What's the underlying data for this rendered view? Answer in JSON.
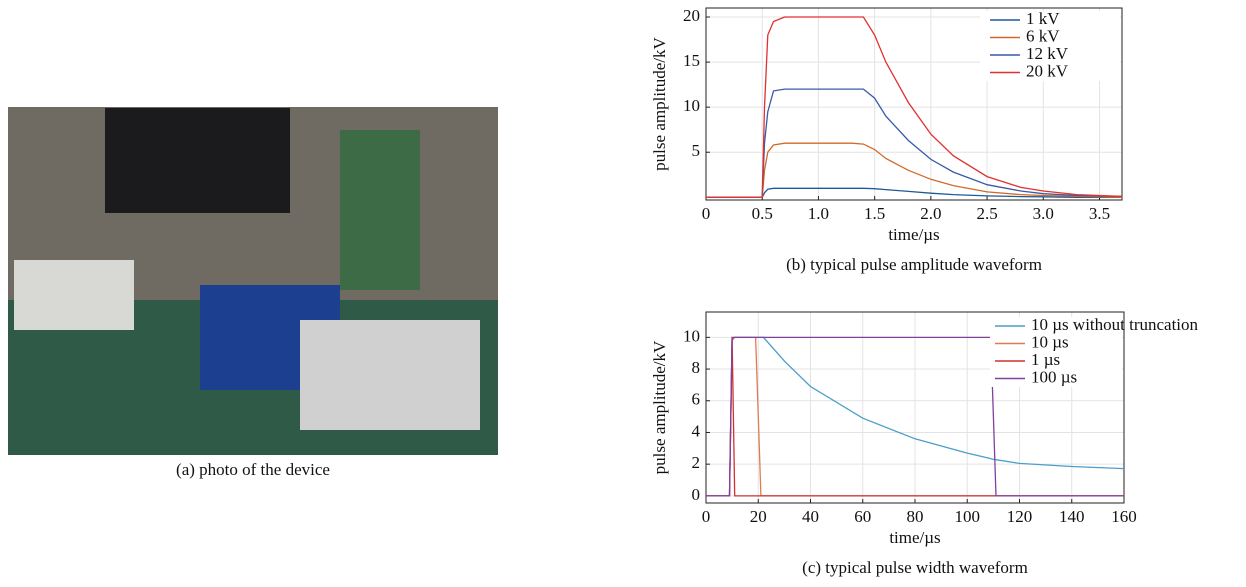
{
  "photo_caption": "(a) photo of the device",
  "chart_data": [
    {
      "type": "line",
      "caption": "(b) typical pulse amplitude waveform",
      "xlabel": "time/µs",
      "ylabel": "pulse amplitude/kV",
      "xlim": [
        0,
        3.7
      ],
      "ylim": [
        -0.3,
        21
      ],
      "xticks": [
        0,
        0.5,
        {
          "value": 1,
          "label": "1.0"
        },
        1.5,
        {
          "value": 2,
          "label": "2.0"
        },
        2.5,
        {
          "value": 3,
          "label": "3.0"
        },
        3.5
      ],
      "yticks": [
        5,
        10,
        15,
        20
      ],
      "grid": true,
      "legend": "upper right",
      "x": [
        0,
        0.5,
        0.52,
        0.55,
        0.6,
        0.7,
        1.0,
        1.3,
        1.4,
        1.5,
        1.6,
        1.8,
        2.0,
        2.2,
        2.5,
        2.8,
        3.0,
        3.3,
        3.7
      ],
      "series": [
        {
          "name": "1 kV",
          "color": "#1f5a9a",
          "values": [
            0,
            0,
            0.5,
            0.9,
            1,
            1,
            1,
            1,
            1,
            0.95,
            0.85,
            0.65,
            0.45,
            0.3,
            0.15,
            0.08,
            0.05,
            0,
            0
          ]
        },
        {
          "name": "6 kV",
          "color": "#d06a2a",
          "values": [
            0,
            0,
            3,
            5,
            5.8,
            6,
            6,
            6,
            5.9,
            5.3,
            4.3,
            3,
            2,
            1.3,
            0.6,
            0.3,
            0.2,
            0.1,
            0
          ]
        },
        {
          "name": "12 kV",
          "color": "#3a5aa6",
          "values": [
            0,
            0,
            6,
            9.5,
            11.8,
            12,
            12,
            12,
            12,
            11,
            9,
            6.3,
            4.2,
            2.8,
            1.4,
            0.7,
            0.4,
            0.2,
            0.1
          ]
        },
        {
          "name": "20 kV",
          "color": "#e03030",
          "values": [
            0,
            0,
            10,
            18,
            19.5,
            20,
            20,
            20,
            20,
            18,
            15,
            10.5,
            7,
            4.6,
            2.3,
            1.1,
            0.7,
            0.3,
            0.1
          ]
        }
      ]
    },
    {
      "type": "line",
      "caption": "(c) typical pulse width waveform",
      "xlabel": "time/µs",
      "ylabel": "pulse amplitude/kV",
      "xlim": [
        0,
        160
      ],
      "ylim": [
        -0.45,
        11.6
      ],
      "xticks": [
        0,
        20,
        40,
        60,
        80,
        100,
        120,
        140,
        160
      ],
      "yticks": [
        0,
        2,
        4,
        6,
        8,
        10
      ],
      "grid": true,
      "legend": "upper right",
      "x": [
        0,
        9,
        10,
        11,
        19,
        20,
        21,
        22,
        30,
        40,
        60,
        80,
        100,
        109,
        110,
        111,
        120,
        140,
        160
      ],
      "series": [
        {
          "name": "10 µs without truncation",
          "color": "#4a9ec9",
          "values": [
            0,
            0,
            9.9,
            10,
            10,
            10,
            10,
            10,
            8.5,
            6.9,
            4.9,
            3.6,
            2.7,
            2.35,
            2.3,
            2.28,
            2.05,
            1.85,
            1.72
          ]
        },
        {
          "name": "10 µs",
          "color": "#e07a55",
          "values": [
            0,
            0,
            9.8,
            10,
            10,
            5,
            0,
            0,
            0,
            0,
            0,
            0,
            0,
            0,
            0,
            0,
            0,
            0,
            0
          ]
        },
        {
          "name": "1 µs",
          "color": "#d03030",
          "values": [
            0,
            0,
            10,
            0,
            0,
            0,
            0,
            0,
            0,
            0,
            0,
            0,
            0,
            0,
            0,
            0,
            0,
            0,
            0
          ]
        },
        {
          "name": "100 µs",
          "color": "#8040a0",
          "values": [
            0,
            0,
            10,
            10,
            10,
            10,
            10,
            10,
            10,
            10,
            10,
            10,
            10,
            10,
            5,
            0,
            0,
            0,
            0
          ]
        }
      ]
    }
  ]
}
